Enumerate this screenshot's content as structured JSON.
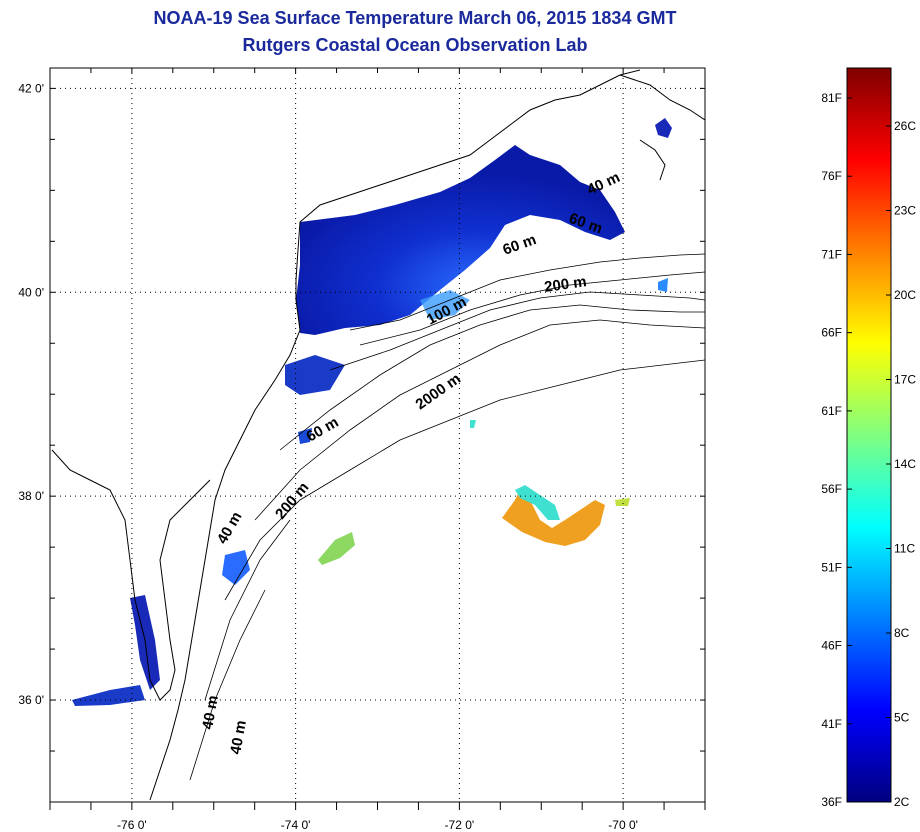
{
  "header": {
    "title": "NOAA-19 Sea Surface Temperature March 06, 2015 1834 GMT",
    "subtitle": "Rutgers Coastal Ocean Observation Lab"
  },
  "map": {
    "lat_ticks": [
      {
        "value": 42,
        "label": "42 0'"
      },
      {
        "value": 40,
        "label": "40 0'"
      },
      {
        "value": 38,
        "label": "38 0'"
      },
      {
        "value": 36,
        "label": "36 0'"
      }
    ],
    "lon_ticks": [
      {
        "value": -76,
        "label": "-76 0'"
      },
      {
        "value": -74,
        "label": "-74 0'"
      },
      {
        "value": -72,
        "label": "-72 0'"
      },
      {
        "value": -70,
        "label": "-70 0'"
      }
    ],
    "lat_range": [
      35,
      42.2
    ],
    "lon_range": [
      -77,
      -69
    ],
    "grid": "dotted",
    "contour_labels": [
      {
        "text": "200 m"
      },
      {
        "text": "100 m"
      },
      {
        "text": "60 m"
      },
      {
        "text": "40 m"
      },
      {
        "text": "2000 m"
      },
      {
        "text": "60 m"
      },
      {
        "text": "200 m"
      },
      {
        "text": "40 m"
      },
      {
        "text": "40 m"
      },
      {
        "text": "40 m"
      },
      {
        "text": "60 m"
      }
    ]
  },
  "colorbar": {
    "colors": [
      "#00007f",
      "#0000ff",
      "#0080ff",
      "#00ffff",
      "#80ff80",
      "#ffff00",
      "#ff8000",
      "#ff0000",
      "#7f0000"
    ],
    "fahrenheit_labels": [
      "81F",
      "76F",
      "71F",
      "66F",
      "61F",
      "56F",
      "51F",
      "46F",
      "41F",
      "36F"
    ],
    "celsius_labels": [
      "26C",
      "23C",
      "20C",
      "17C",
      "14C",
      "11C",
      "8C",
      "5C",
      "2C"
    ]
  }
}
